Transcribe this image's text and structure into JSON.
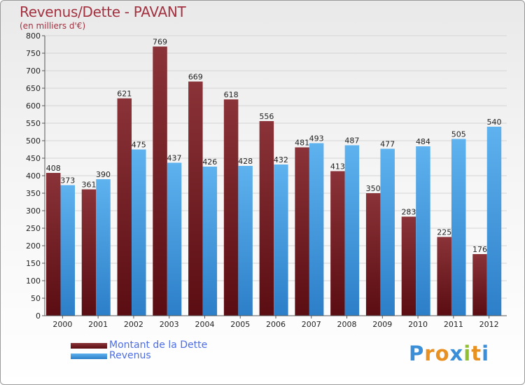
{
  "colors": {
    "debt_top": "#8a3338",
    "debt_bottom": "#5a0d12",
    "revenue_top": "#5eb2ee",
    "revenue_bottom": "#2c7fc8",
    "title": "#a33140",
    "legend_text": "#4d6ee6"
  },
  "logo": {
    "letters": [
      "P",
      "r",
      "o",
      "x",
      "i",
      "t",
      "i"
    ],
    "colors": [
      "#3a8fd8",
      "#e89020",
      "#e89020",
      "#3a8fd8",
      "#90c030",
      "#e89020",
      "#3a8fd8"
    ]
  },
  "chart_data": {
    "type": "bar",
    "title": "Revenus/Dette - PAVANT",
    "subtitle": "(en milliers d'€)",
    "categories": [
      "2000",
      "2001",
      "2002",
      "2003",
      "2004",
      "2005",
      "2006",
      "2007",
      "2008",
      "2009",
      "2010",
      "2011",
      "2012"
    ],
    "series": [
      {
        "name": "Montant de la Dette",
        "values": [
          408,
          361,
          621,
          769,
          669,
          618,
          556,
          481,
          413,
          350,
          283,
          225,
          176
        ]
      },
      {
        "name": "Revenus",
        "values": [
          373,
          390,
          475,
          437,
          426,
          428,
          432,
          493,
          487,
          477,
          484,
          505,
          540
        ]
      }
    ],
    "ylim": [
      0,
      800
    ],
    "yticks": [
      0,
      50,
      100,
      150,
      200,
      250,
      300,
      350,
      400,
      450,
      500,
      550,
      600,
      650,
      700,
      750,
      800
    ],
    "grid": true,
    "legend_position": "bottom-left"
  }
}
